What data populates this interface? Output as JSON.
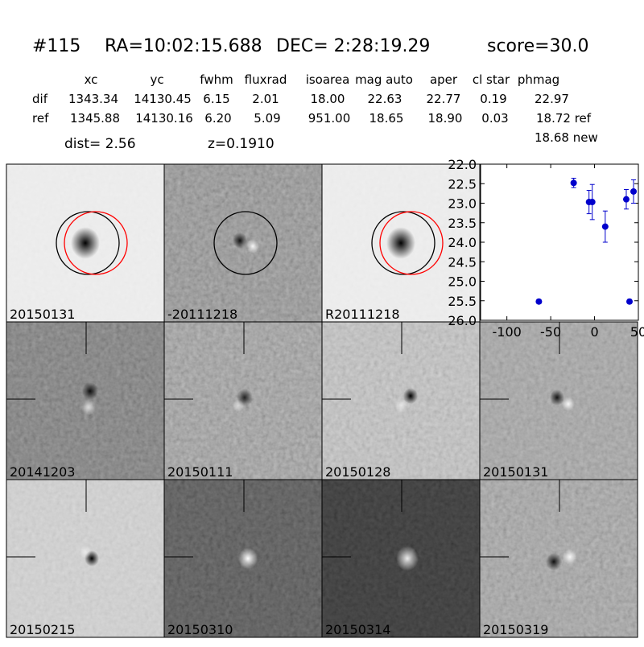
{
  "header": {
    "id": "#115",
    "ra": "RA=10:02:15.688",
    "dec": "DEC= 2:28:19.29",
    "score": "score=30.0"
  },
  "table": {
    "columns": [
      "xc",
      "yc",
      "fwhm",
      "fluxrad",
      "isoarea",
      "mag auto",
      "aper",
      "cl star",
      "phmag"
    ],
    "rows": [
      [
        "dif",
        "1343.34",
        "14130.45",
        "6.15",
        "2.01",
        "18.00",
        "22.63",
        "22.77",
        "0.19",
        "22.97"
      ],
      [
        "ref",
        "1345.88",
        "14130.16",
        "6.20",
        "5.09",
        "951.00",
        "18.65",
        "18.90",
        "0.03",
        "18.72 ref"
      ]
    ],
    "extra": "18.68 new"
  },
  "info": {
    "dist": "dist=  2.56",
    "z": "z=0.1910"
  },
  "panels": [
    "20150131",
    "-20111218",
    "R20111218",
    "20141203",
    "20150111",
    "20150128",
    "20150131",
    "20150215",
    "20150310",
    "20150314",
    "20150319"
  ],
  "chart_data": {
    "type": "errorbar",
    "xlim": [
      -130,
      50
    ],
    "xticks": [
      -100,
      -50,
      0,
      50
    ],
    "ylim": [
      26.0,
      22.0
    ],
    "yticks": [
      {
        "value": 22.0,
        "label": "22.0"
      },
      {
        "value": 22.5,
        "label": "22.5"
      },
      {
        "value": 23.0,
        "label": "23.0"
      },
      {
        "value": 23.5,
        "label": "23.5"
      },
      {
        "value": 24.0,
        "label": "24.0"
      },
      {
        "value": 24.5,
        "label": "24.5"
      },
      {
        "value": 25.0,
        "label": "25.0"
      },
      {
        "value": 25.5,
        "label": "25.5"
      },
      {
        "value": 26.0,
        "label": "26.0"
      }
    ],
    "inverted_y": true,
    "series": [
      {
        "color": "#0000cc",
        "x": [
          -63.5,
          -23.8,
          -6.3,
          -2.6,
          12.2,
          36.2,
          39.9,
          44.5
        ],
        "values": [
          25.52,
          22.48,
          22.97,
          22.97,
          23.6,
          22.9,
          25.52,
          22.7
        ],
        "errors": [
          0.05,
          0.12,
          0.3,
          0.45,
          0.4,
          0.25,
          0.05,
          0.3
        ]
      }
    ]
  }
}
